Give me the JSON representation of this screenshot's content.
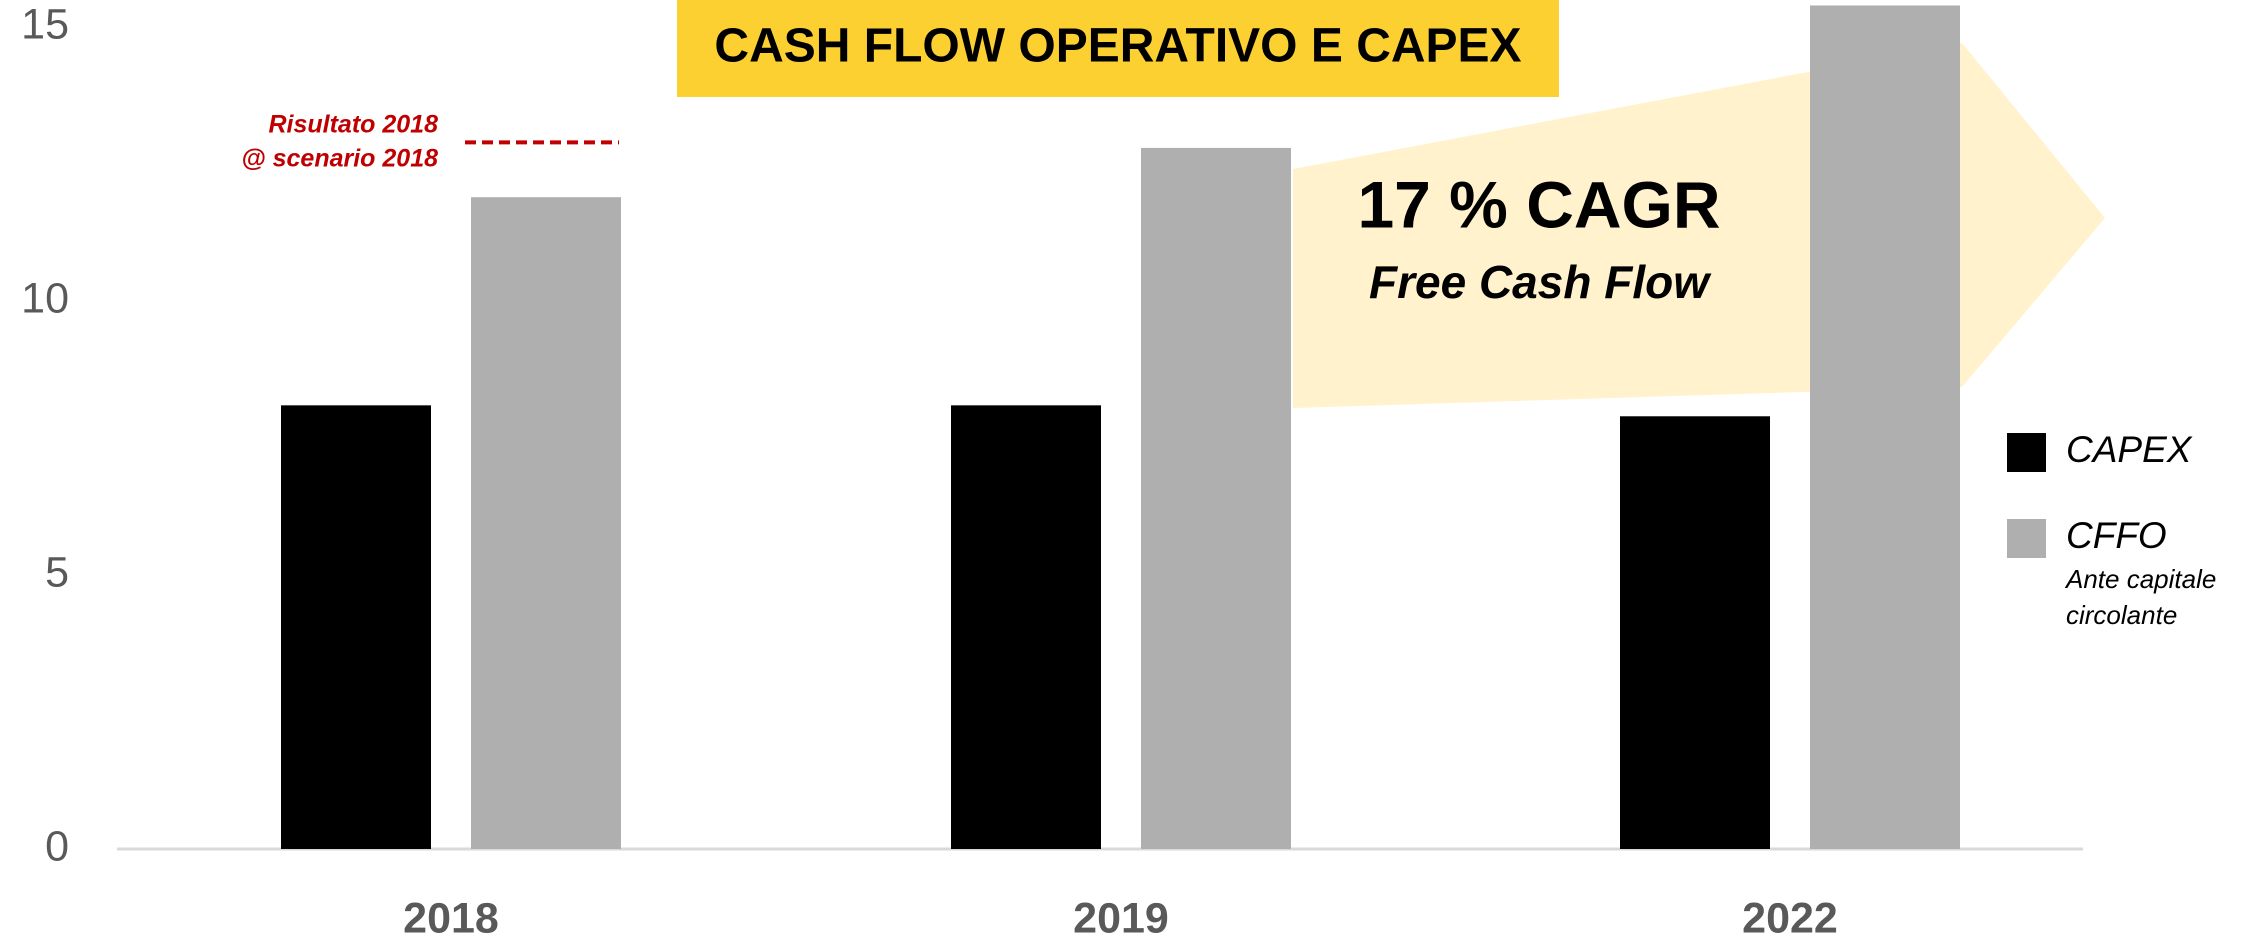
{
  "chart_data": {
    "type": "bar",
    "title": "CASH FLOW OPERATIVO E CAPEX",
    "categories": [
      "2018",
      "2019",
      "2022"
    ],
    "series": [
      {
        "name": "CAPEX",
        "color": "#000000",
        "values": [
          8.1,
          8.1,
          7.9
        ]
      },
      {
        "name": "CFFO",
        "color": "#afafaf",
        "values": [
          11.9,
          12.8,
          15.4
        ]
      }
    ],
    "legend_note": [
      "Ante capitale",
      "circolante"
    ],
    "ylim": [
      0,
      15.5
    ],
    "yticks": [
      0,
      5,
      10,
      15
    ],
    "grid": false,
    "legend": "right",
    "annotations": [
      {
        "lines": [
          "Risultato 2018",
          "@ scenario 2018"
        ],
        "value": 12.9,
        "color": "#c00000"
      },
      {
        "lines": [
          "17 % CAGR",
          "Free Cash Flow"
        ]
      }
    ]
  }
}
